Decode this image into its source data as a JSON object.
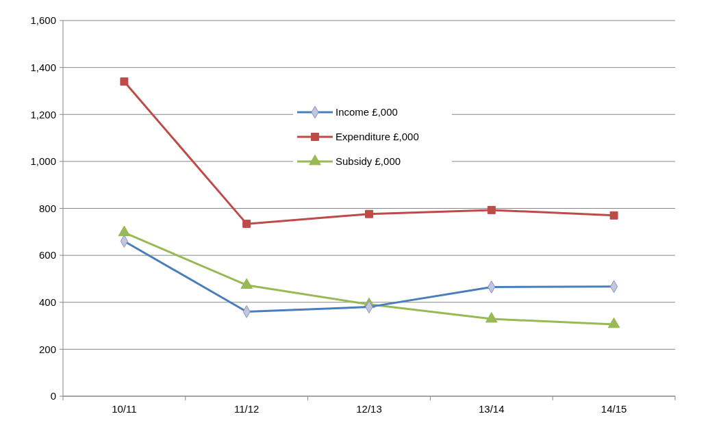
{
  "chart_data": {
    "type": "line",
    "categories": [
      "10/11",
      "11/12",
      "12/13",
      "13/14",
      "14/15"
    ],
    "series": [
      {
        "name": "Income £,000",
        "color": "#4a7ebb",
        "marker": "diamond",
        "values": [
          660,
          360,
          380,
          465,
          467
        ]
      },
      {
        "name": "Expenditure £,000",
        "color": "#be4b48",
        "marker": "square",
        "values": [
          1340,
          734,
          776,
          793,
          770
        ]
      },
      {
        "name": "Subsidy £,000",
        "color": "#98b954",
        "marker": "triangle",
        "values": [
          697,
          473,
          391,
          329,
          306
        ]
      }
    ],
    "ylim": [
      0,
      1600
    ],
    "yticks": [
      {
        "value": 0,
        "label": "0"
      },
      {
        "value": 200,
        "label": "200"
      },
      {
        "value": 400,
        "label": "400"
      },
      {
        "value": 600,
        "label": "600"
      },
      {
        "value": 800,
        "label": "800"
      },
      {
        "value": 1000,
        "label": "1,000"
      },
      {
        "value": 1200,
        "label": "1,200"
      },
      {
        "value": 1400,
        "label": "1,400"
      },
      {
        "value": 1600,
        "label": "1,600"
      }
    ],
    "grid": "y",
    "legend": "top"
  }
}
